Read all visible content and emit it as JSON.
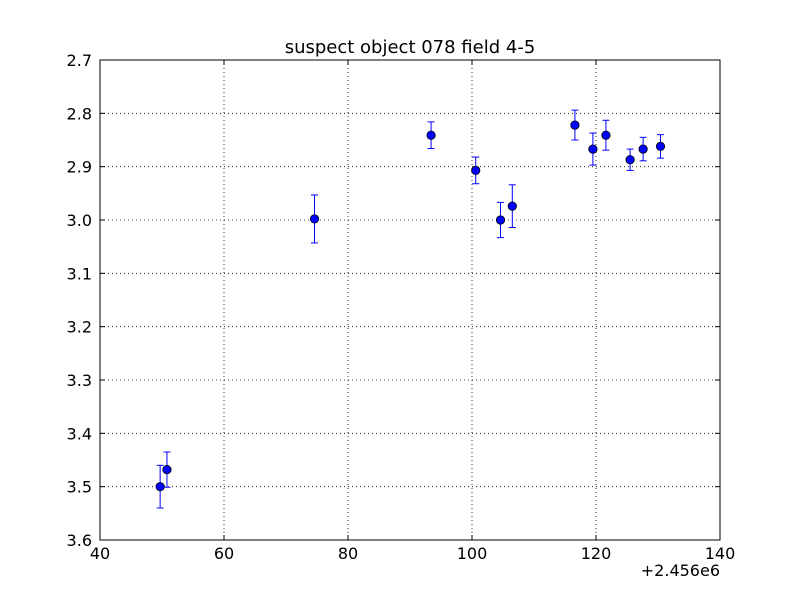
{
  "chart_data": {
    "type": "scatter",
    "title": "suspect object 078 field 4-5",
    "xlabel": "",
    "ylabel": "",
    "x_offset_label": "+2.456e6",
    "xlim": [
      40,
      140
    ],
    "ylim": [
      3.6,
      2.7
    ],
    "y_inverted": true,
    "grid": true,
    "x_ticks": [
      "40",
      "60",
      "80",
      "100",
      "120",
      "140"
    ],
    "y_ticks": [
      "2.7",
      "2.8",
      "2.9",
      "3.0",
      "3.1",
      "3.2",
      "3.3",
      "3.4",
      "3.5",
      "3.6"
    ],
    "series": [
      {
        "marker": "circle",
        "error_bars": true,
        "color": "#0000ff",
        "points": [
          {
            "x": 49.7,
            "y": 3.5,
            "err": 0.04
          },
          {
            "x": 50.8,
            "y": 3.468,
            "err": 0.033
          },
          {
            "x": 74.6,
            "y": 2.998,
            "err": 0.045
          },
          {
            "x": 93.4,
            "y": 2.841,
            "err": 0.025
          },
          {
            "x": 100.6,
            "y": 2.907,
            "err": 0.025
          },
          {
            "x": 104.6,
            "y": 3.0,
            "err": 0.033
          },
          {
            "x": 106.5,
            "y": 2.974,
            "err": 0.04
          },
          {
            "x": 116.6,
            "y": 2.822,
            "err": 0.028
          },
          {
            "x": 119.5,
            "y": 2.867,
            "err": 0.03
          },
          {
            "x": 121.6,
            "y": 2.841,
            "err": 0.028
          },
          {
            "x": 125.5,
            "y": 2.887,
            "err": 0.02
          },
          {
            "x": 127.6,
            "y": 2.867,
            "err": 0.022
          },
          {
            "x": 130.4,
            "y": 2.862,
            "err": 0.022
          }
        ]
      }
    ]
  }
}
